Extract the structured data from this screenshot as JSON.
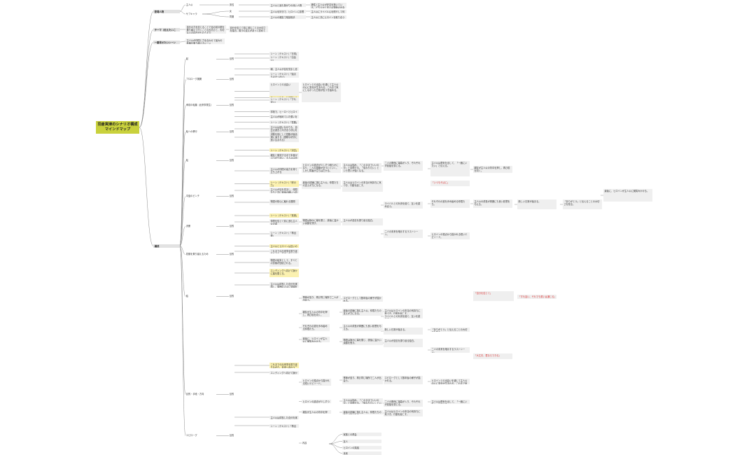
{
  "root": "羽倉実津のシナリオ構成マインドマップ",
  "top": {
    "reader": "登場人物",
    "theme": "テーマ（伝えたいこと）",
    "scene": "一番見せたいシーン",
    "synopsis": "構成"
  },
  "reader_children": [
    "主人公",
    "サブキャラ"
  ],
  "reader_leaves": [
    "男性",
    "女",
    "同期"
  ],
  "reader_texts": [
    "主人公と最も繋がりの深い人物",
    "異性と主人公が好意を抱いている。どちらかと言えば運命の出会い",
    "主人公を好きで、ヒロインに影響を与える女性",
    "主人公にライバル心を燃やして何かと張り合ってくる",
    "主人公の親友で相談相手",
    "主人公と共にヒロインを取り合うが、最後は身を引いて応援する"
  ],
  "theme_texts": [
    "自分の力を信じることで目の前の壁を乗り越えて行くことの大切さと、大切な人の存在がもたらす力",
    "自分を信じて前に進むことの大切さを描き、周りの支えがあって初めて乗り越えられる"
  ],
  "scene_text": "主人公が仲間と力を合わせて最大の危機を乗り越えるシーン",
  "acts": [
    "起",
    "プロローグ展開",
    "承前の転機（出来事発生）",
    "転への移行",
    "転",
    "中盤のピンチ",
    "決断",
    "葛藤を乗り越えるため",
    "結",
    "目的・手段・方向",
    "エピローグ"
  ],
  "labels": {
    "mokuteki": "目的",
    "scene_label": "シーン・エピソード",
    "bamen": "場面",
    "naiyou": "内容",
    "kankei": "関係性",
    "dounyu": "導入"
  },
  "mid_texts": [
    "シーン（テキスト）「日常」",
    "シーン（テキスト）「出会い」",
    "朝、主人公が目を覚まし窓を開けると、見慣れた景色が広がっている。いつも通りの朝、しかしその日は何かが違う予感がしていた。通学路で同級生と会話しながら学校へ向かう。",
    "シーン（テキスト）「始まりのきっかけ」",
    "ヒロインとの出会い",
    "主人公と出会った瞬間からヒロインの運命が動き出す",
    "シーン（テキスト）「すれ違い」",
    "学校で、ヒーローとヒロインが会話をする中で、お互いの気持ちにまだ気づいていない。二人の関係にライバルが割って入り、誤解が生まれる場面が描かれる。",
    "主人公が秘めていた想いを告白する",
    "シーン（テキスト）「葛藤」",
    "主人公は迷いながらも、自分の過去と向き合う決心をする。",
    "決断を前にして葛藤が最高潮に達する（困難な状況に追い込まれる）",
    "シーン（テキスト）「決意」",
    "親友と衝突する中で本音がぶつかり合い、主人公は自分の弱さを認める。",
    "主人公が仲間の協力を得て立ち上がる",
    "シーン（テキスト）「絆の力」",
    "主人公が目を覚まし、仲間たちと共に最後の戦いへ向かう。そこで待ち受けていたのは予想外の真実だった。",
    "物語の核心に触れる展開",
    "シーン（テキスト）「真実」",
    "仲間を信じて前に進む主人公の姿",
    "シーン（テキスト）「再出発」",
    "主人公とヒロインは互いの想いを確かめ合い、新たな一歩を踏み出す。",
    "これまでの出来事を振り返りながら、未来へ向かう二人。",
    "物語の結末として、すべての伏線が回収される。",
    "エンディングへ向けて静かに幕を閉じる。",
    "主人公は成長した自分を実感し、周囲の人々に感謝を伝える。"
  ],
  "long_texts": [
    "ヒロインとの出会いを通して主人公の心に変化が生まれる。これまで気にしなかった日常が色づき始める。",
    "ヒロインの過去が少しずつ明らかになり、二人の距離が近づいていく。しかし障害が立ちはだかる。",
    "主人公は悩み、「このままでいいのか」と自問する。「変わりたい」という思いが強くなる。",
    "二人の関係に亀裂が入り、それぞれが孤独を感じる。",
    "主人公は勇気を出して、「一緒にいたい」と伝える。",
    "親友が主人公の背中を押し、再び前を向く。",
    "最後の試練に挑む主人公。仲間たちの支えが力になる。",
    "主人公はヒロインの本当の気持ちに気づき、行動を起こす。",
    "ライバルとの対決を経て、互いを認め合う。",
    "それぞれの道を歩み始める仲間たち。",
    "主人公の成長が周囲にも良い影響を与える。",
    "新しい日常が始まる。",
    "「ありがとう」と伝えることの大切さを知る。",
    "最後に、ヒロインが主人公に微笑みかける。",
    "物語は静かに幕を閉じ、読後に温かい余韻を残す。",
    "主人公が過去を振り返る独白。",
    "二人の未来を暗示するラストシーン。",
    "ヒロインの視点から描かれる短いエピソード。",
    "季節が巡り、再び同じ場所で二人が出会う。",
    "エピローグとして数年後の様子が描かれる。"
  ],
  "red_texts": [
    "「すれ違い、それでも想いは通じる」",
    "「自分を信じて」",
    "「いつもそばに」",
    "「大丈夫、君ならできる」"
  ],
  "epilogue_items": [
    "家族との再会",
    "友人",
    "ヒロインの笑顔",
    "未来"
  ]
}
